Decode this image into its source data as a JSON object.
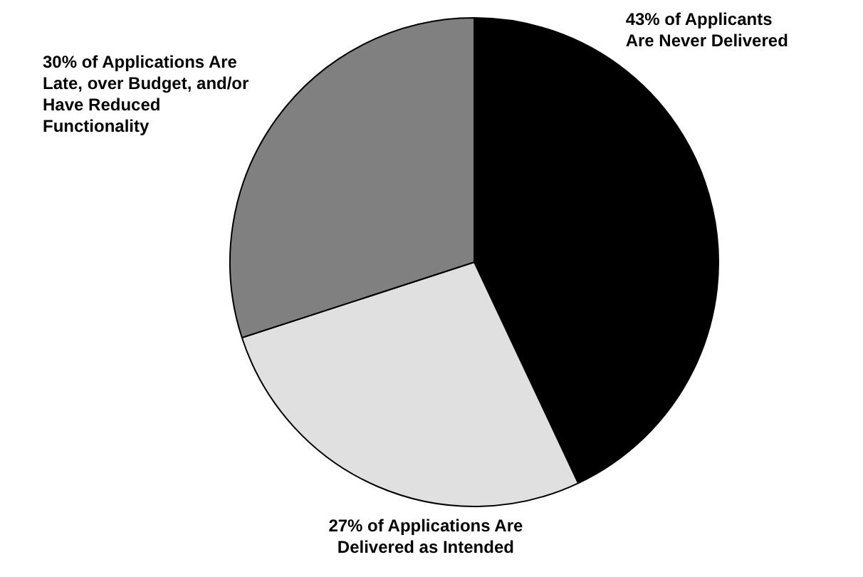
{
  "chart_data": {
    "type": "pie",
    "categories": [
      "43% of Applicants Are Never Delivered",
      "27% of Applications Are Delivered as Intended",
      "30% of Applications Are Late, over Budget, and/or Have Reduced Functionality"
    ],
    "values": [
      43,
      27,
      30
    ],
    "colors": [
      "#000000",
      "#e0e0e0",
      "#808080"
    ]
  }
}
